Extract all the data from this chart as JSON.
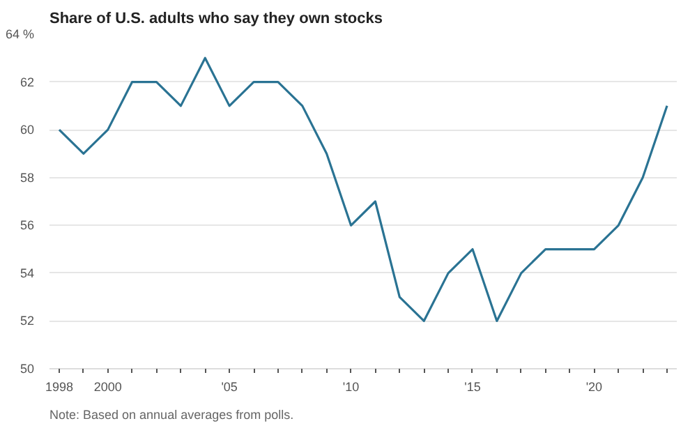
{
  "chart_data": {
    "type": "line",
    "title": "Share of U.S. adults who say they own stocks",
    "x": [
      1998,
      1999,
      2000,
      2001,
      2002,
      2003,
      2004,
      2005,
      2006,
      2007,
      2008,
      2009,
      2010,
      2011,
      2012,
      2013,
      2014,
      2015,
      2016,
      2017,
      2018,
      2019,
      2020,
      2021,
      2022,
      2023
    ],
    "series": [
      {
        "color": "#2a7393",
        "values": [
          60,
          59,
          60,
          62,
          62,
          61,
          63,
          61,
          62,
          62,
          61,
          59,
          56,
          57,
          53,
          52,
          54,
          55,
          52,
          54,
          55,
          55,
          55,
          56,
          58,
          61
        ]
      }
    ],
    "xlim": [
      1997.6,
      2023.4
    ],
    "xticks": [
      1998,
      {
        "value": 1999,
        "label": null
      },
      2000,
      {
        "value": 2001,
        "label": null
      },
      {
        "value": 2002,
        "label": null
      },
      {
        "value": 2003,
        "label": null
      },
      {
        "value": 2004,
        "label": null
      },
      {
        "value": 2005,
        "label": "'05"
      },
      {
        "value": 2006,
        "label": null
      },
      {
        "value": 2007,
        "label": null
      },
      {
        "value": 2008,
        "label": null
      },
      {
        "value": 2009,
        "label": null
      },
      {
        "value": 2010,
        "label": "'10"
      },
      {
        "value": 2011,
        "label": null
      },
      {
        "value": 2012,
        "label": null
      },
      {
        "value": 2013,
        "label": null
      },
      {
        "value": 2014,
        "label": null
      },
      {
        "value": 2015,
        "label": "'15"
      },
      {
        "value": 2016,
        "label": null
      },
      {
        "value": 2017,
        "label": null
      },
      {
        "value": 2018,
        "label": null
      },
      {
        "value": 2019,
        "label": null
      },
      {
        "value": 2020,
        "label": "'20"
      },
      {
        "value": 2021,
        "label": null
      },
      {
        "value": 2022,
        "label": null
      },
      {
        "value": 2023,
        "label": null
      }
    ],
    "ylim": [
      50,
      64
    ],
    "yticks": [
      50,
      52,
      54,
      56,
      58,
      60,
      62,
      {
        "value": 64,
        "label": "64 %"
      }
    ],
    "grid": "y",
    "marker": "none",
    "line_style": "solid",
    "annotations": [
      "Note: Based on annual averages from polls."
    ]
  }
}
